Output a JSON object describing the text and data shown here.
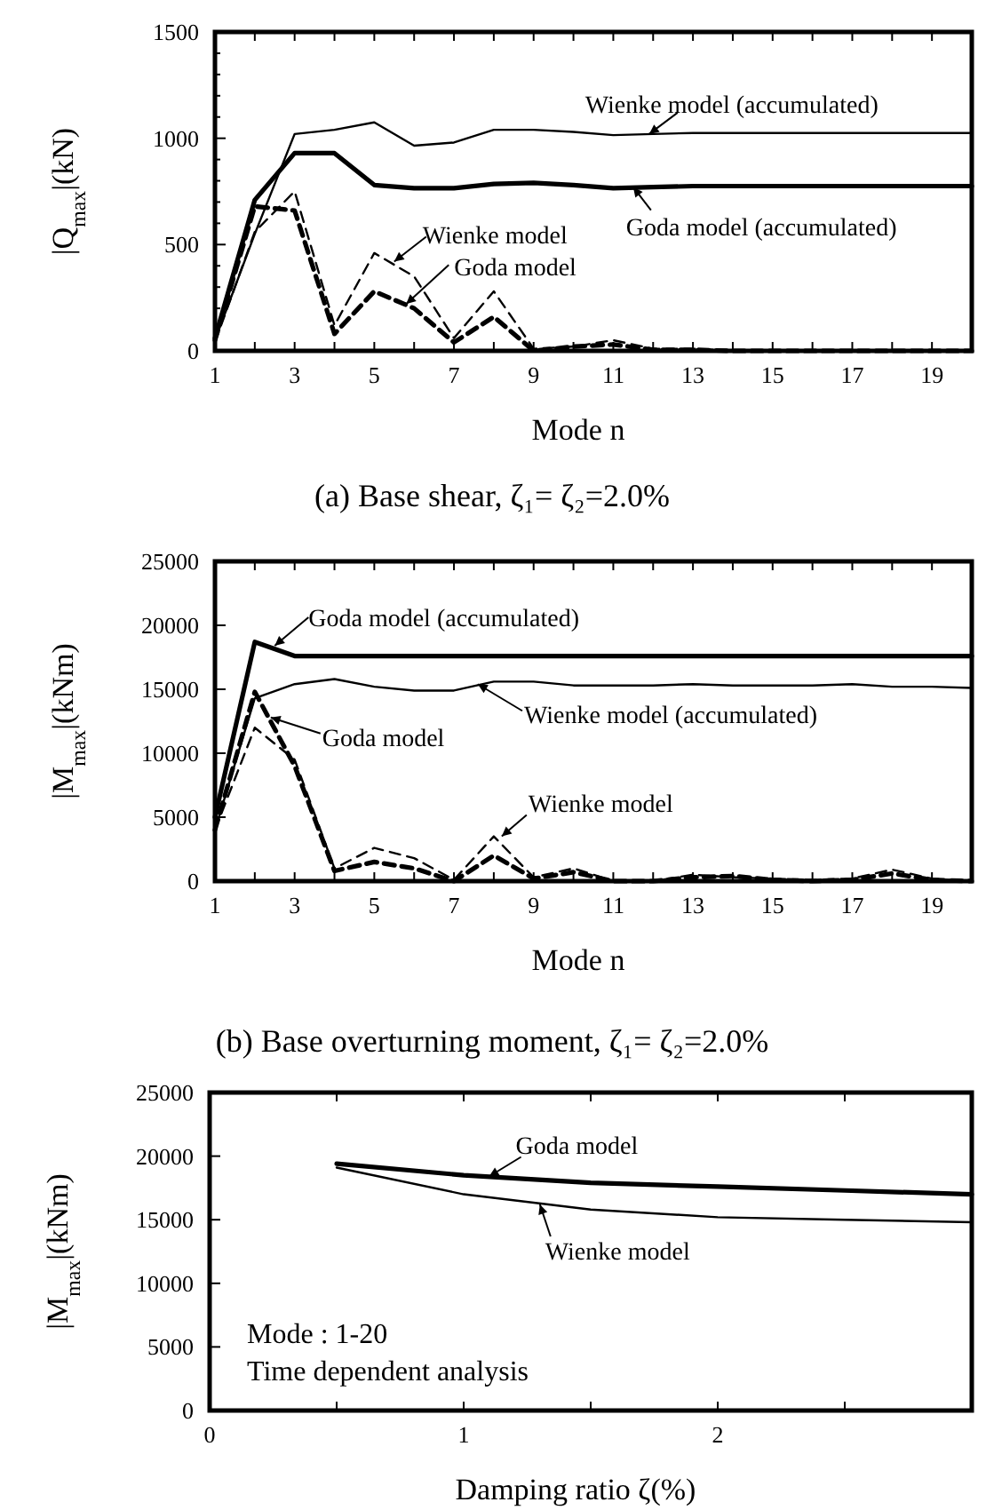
{
  "chart_data": [
    {
      "type": "line",
      "title": "(a)  Base shear, ζ₁= ζ₂=2.0%",
      "xlabel": "Mode n",
      "ylabel": "|Q$_{max}$|(kN)",
      "x": [
        1,
        2,
        3,
        4,
        5,
        6,
        7,
        8,
        9,
        10,
        11,
        12,
        13,
        14,
        15,
        16,
        17,
        18,
        19,
        20
      ],
      "xlim": [
        1,
        20
      ],
      "ylim": [
        0,
        1500
      ],
      "xticks": [
        1,
        {
          "value": 2,
          "label": null
        },
        3,
        {
          "value": 4,
          "label": null
        },
        5,
        {
          "value": 6,
          "label": null
        },
        7,
        {
          "value": 8,
          "label": null
        },
        9,
        {
          "value": 10,
          "label": null
        },
        11,
        {
          "value": 12,
          "label": null
        },
        13,
        {
          "value": 14,
          "label": null
        },
        15,
        {
          "value": 16,
          "label": null
        },
        17,
        {
          "value": 18,
          "label": null
        },
        19,
        {
          "value": 20,
          "label": null
        }
      ],
      "yticks": [
        0,
        {
          "value": 100,
          "label": null
        },
        {
          "value": 200,
          "label": null
        },
        {
          "value": 300,
          "label": null
        },
        {
          "value": 400,
          "label": null
        },
        500,
        {
          "value": 600,
          "label": null
        },
        {
          "value": 700,
          "label": null
        },
        {
          "value": 800,
          "label": null
        },
        {
          "value": 900,
          "label": null
        },
        1000,
        {
          "value": 1100,
          "label": null
        },
        {
          "value": 1200,
          "label": null
        },
        {
          "value": 1300,
          "label": null
        },
        {
          "value": 1400,
          "label": null
        },
        1500
      ],
      "series": [
        {
          "color": "#000000",
          "line_style": "solid",
          "values": [
            50,
            550,
            1020,
            1040,
            1075,
            965,
            980,
            1040,
            1040,
            1030,
            1015,
            1020,
            1025,
            1025,
            1025,
            1025,
            1025,
            1025,
            1025,
            1025
          ]
        },
        {
          "color": "#000000",
          "line_style": "solid",
          "values": [
            60,
            710,
            930,
            930,
            780,
            765,
            765,
            785,
            790,
            780,
            765,
            770,
            775,
            775,
            775,
            775,
            775,
            775,
            775,
            775
          ]
        },
        {
          "color": "#000000",
          "line_style": "dashed",
          "values": [
            40,
            560,
            750,
            120,
            460,
            350,
            60,
            280,
            10,
            20,
            50,
            10,
            10,
            0,
            0,
            0,
            0,
            0,
            0,
            0
          ]
        },
        {
          "color": "#000000",
          "line_style": "dashed",
          "values": [
            50,
            680,
            660,
            80,
            280,
            200,
            40,
            160,
            0,
            20,
            30,
            5,
            5,
            0,
            0,
            0,
            0,
            0,
            0,
            0
          ]
        }
      ],
      "annotations": [
        {
          "text": "Wienke model (accumulated)",
          "x": 11.9,
          "y": 1020
        },
        {
          "text": "Goda model (accumulated)",
          "x": 11.5,
          "y": 770
        },
        {
          "text": "Wienke model",
          "x": 5.5,
          "y": 420
        },
        {
          "text": "Goda model",
          "x": 5.8,
          "y": 220
        }
      ]
    },
    {
      "type": "line",
      "title": "(b)  Base overturning moment, ζ₁= ζ₂=2.0%",
      "xlabel": "Mode n",
      "ylabel": "|M$_{max}$|(kNm)",
      "x": [
        1,
        2,
        3,
        4,
        5,
        6,
        7,
        8,
        9,
        10,
        11,
        12,
        13,
        14,
        15,
        16,
        17,
        18,
        19,
        20
      ],
      "xlim": [
        1,
        20
      ],
      "ylim": [
        0,
        25000
      ],
      "xticks": [
        1,
        {
          "value": 2,
          "label": null
        },
        3,
        {
          "value": 4,
          "label": null
        },
        5,
        {
          "value": 6,
          "label": null
        },
        7,
        {
          "value": 8,
          "label": null
        },
        9,
        {
          "value": 10,
          "label": null
        },
        11,
        {
          "value": 12,
          "label": null
        },
        13,
        {
          "value": 14,
          "label": null
        },
        15,
        {
          "value": 16,
          "label": null
        },
        17,
        {
          "value": 18,
          "label": null
        },
        19,
        {
          "value": 20,
          "label": null
        }
      ],
      "yticks": [
        0,
        5000,
        10000,
        15000,
        20000,
        25000
      ],
      "series": [
        {
          "color": "#000000",
          "line_style": "solid",
          "values": [
            5000,
            18700,
            17600,
            17600,
            17600,
            17600,
            17600,
            17600,
            17600,
            17600,
            17600,
            17600,
            17600,
            17600,
            17600,
            17600,
            17600,
            17600,
            17600,
            17600
          ]
        },
        {
          "color": "#000000",
          "line_style": "solid",
          "values": [
            4000,
            14300,
            15400,
            15800,
            15200,
            14900,
            14900,
            15600,
            15600,
            15300,
            15300,
            15300,
            15400,
            15300,
            15300,
            15300,
            15400,
            15200,
            15200,
            15100
          ]
        },
        {
          "color": "#000000",
          "line_style": "dashed",
          "values": [
            4000,
            14800,
            9000,
            800,
            1500,
            1000,
            0,
            2000,
            200,
            700,
            0,
            0,
            300,
            400,
            100,
            0,
            100,
            600,
            100,
            0
          ]
        },
        {
          "color": "#000000",
          "line_style": "dashed",
          "values": [
            4000,
            12000,
            9500,
            1000,
            2600,
            1800,
            100,
            3500,
            300,
            1000,
            0,
            0,
            500,
            300,
            200,
            100,
            200,
            900,
            200,
            0
          ]
        }
      ],
      "annotations": [
        {
          "text": "Goda model (accumulated)",
          "x": 2.5,
          "y": 18400
        },
        {
          "text": "Wienke model (accumulated)",
          "x": 7.6,
          "y": 15400
        },
        {
          "text": "Goda model",
          "x": 2.4,
          "y": 12800
        },
        {
          "text": "Wienke model",
          "x": 8.2,
          "y": 3500
        }
      ]
    },
    {
      "type": "line",
      "xlabel": "Damping ratio ζ(%)",
      "ylabel": "|M$_{max}$|(kNm)",
      "x": [
        0.5,
        1,
        1.5,
        2,
        2.5,
        3
      ],
      "xlim": [
        0,
        3
      ],
      "ylim": [
        0,
        25000
      ],
      "xticks": [
        0,
        {
          "value": 0.5,
          "label": null
        },
        1,
        {
          "value": 1.5,
          "label": null
        },
        2,
        {
          "value": 2.5,
          "label": null
        }
      ],
      "yticks": [
        0,
        5000,
        10000,
        15000,
        20000,
        25000
      ],
      "series": [
        {
          "color": "#000000",
          "line_style": "solid",
          "values": [
            19400,
            18500,
            17900,
            17600,
            17300,
            17000
          ]
        },
        {
          "color": "#000000",
          "line_style": "solid",
          "values": [
            19100,
            17000,
            15800,
            15200,
            15000,
            14800
          ]
        }
      ],
      "annotations": [
        {
          "text": "Goda model",
          "x": 1.1,
          "y": 18400
        },
        {
          "text": "Wienke model",
          "x": 1.3,
          "y": 16200
        },
        "Mode : 1-20",
        "Time dependent analysis"
      ]
    }
  ]
}
